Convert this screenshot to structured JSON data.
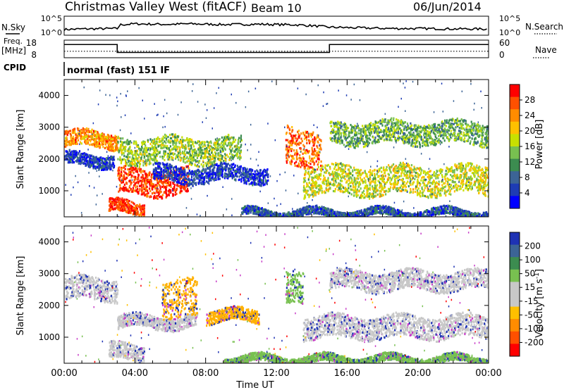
{
  "header": {
    "station": "Christmas Valley West (fitACF)",
    "beam": "Beam 10",
    "date": "06/Jun/2014"
  },
  "chart_data": [
    {
      "type": "line",
      "panel": "sky-noise",
      "left_label": "N.Sky",
      "right_label": "N.Search",
      "left_ticks": [
        "10^5",
        "10^0"
      ],
      "right_ticks": [
        "10^5",
        "10^0"
      ],
      "x": [
        "00:00",
        "01:00",
        "02:00",
        "03:00",
        "03:10",
        "04:00",
        "05:00",
        "06:00",
        "07:00",
        "08:00",
        "09:00",
        "10:00",
        "11:00",
        "12:00",
        "13:00",
        "14:00",
        "15:00",
        "16:00",
        "17:00",
        "18:00",
        "19:00",
        "20:00",
        "21:00",
        "22:00",
        "23:00",
        "24:00"
      ],
      "series": [
        {
          "name": "N.Sky",
          "values": [
            0.3,
            0.33,
            0.34,
            0.35,
            0.55,
            0.6,
            0.58,
            0.57,
            0.6,
            0.58,
            0.56,
            0.57,
            0.58,
            0.56,
            0.55,
            0.5,
            0.42,
            0.4,
            0.38,
            0.36,
            0.35,
            0.35,
            0.34,
            0.33,
            0.33,
            0.32
          ]
        }
      ],
      "ylim": [
        0,
        1
      ]
    },
    {
      "type": "line",
      "panel": "frequency-nave",
      "left_label": "Freq.",
      "left_unit": "[MHz]",
      "right_label": "Nave",
      "left_ticks": [
        "18",
        "8"
      ],
      "right_ticks": [
        "60",
        "0"
      ],
      "x": [
        "00:00",
        "03:00",
        "03:00",
        "15:00",
        "15:00",
        "24:00"
      ],
      "series": [
        {
          "name": "Freq.",
          "values": [
            15.5,
            15.5,
            11.0,
            11.0,
            15.5,
            15.5
          ]
        },
        {
          "name": "Nave",
          "values": [
            22,
            22,
            22,
            22,
            22,
            22
          ]
        }
      ],
      "ylim": [
        8,
        18
      ]
    },
    {
      "type": "heatmap",
      "panel": "power",
      "cpid_label": "CPID",
      "cpid_text": "normal (fast) 151 IF",
      "ylabel": "Slant Range [km]",
      "yticks": [
        "4000",
        "3000",
        "2000",
        "1000"
      ],
      "ylim": [
        180,
        4500
      ],
      "xlim": [
        "00:00",
        "24:00"
      ],
      "colorbar_label": "Power [dB]",
      "colorbar_ticks": [
        "28",
        "24",
        "20",
        "16",
        "12",
        "8",
        "4"
      ],
      "colorbar_colors": [
        "#ff0000",
        "#ff5000",
        "#ff8c00",
        "#ffc000",
        "#c8e000",
        "#78c050",
        "#3c8c50",
        "#3c6496",
        "#1e3cb4",
        "#0000ff"
      ],
      "echo_bands": [
        {
          "t": [
            0.0,
            3.0
          ],
          "range": [
            2400,
            2900
          ],
          "level": 24
        },
        {
          "t": [
            0.0,
            2.8
          ],
          "range": [
            1800,
            2200
          ],
          "level": 6
        },
        {
          "t": [
            3.0,
            7.0
          ],
          "range": [
            900,
            1700
          ],
          "level": 28
        },
        {
          "t": [
            2.5,
            4.5
          ],
          "range": [
            300,
            700
          ],
          "level": 28
        },
        {
          "t": [
            3.0,
            10.0
          ],
          "range": [
            1900,
            2700
          ],
          "level": 16
        },
        {
          "t": [
            5.0,
            11.5
          ],
          "range": [
            1300,
            1800
          ],
          "level": 6
        },
        {
          "t": [
            12.5,
            14.5
          ],
          "range": [
            1800,
            3000
          ],
          "level": 26
        },
        {
          "t": [
            13.5,
            24.0
          ],
          "range": [
            900,
            1800
          ],
          "level": 18
        },
        {
          "t": [
            15.0,
            24.0
          ],
          "range": [
            2500,
            3200
          ],
          "level": 14
        },
        {
          "t": [
            10.0,
            24.0
          ],
          "range": [
            200,
            450
          ],
          "level": 8
        }
      ]
    },
    {
      "type": "heatmap",
      "panel": "velocity",
      "ylabel": "Slant Range [km]",
      "yticks": [
        "4000",
        "3000",
        "2000",
        "1000"
      ],
      "ylim": [
        180,
        4500
      ],
      "xticks": [
        "00:00",
        "04:00",
        "08:00",
        "12:00",
        "16:00",
        "20:00",
        "00:00"
      ],
      "xlabel": "Time UT",
      "colorbar_label": "Velocity [m s",
      "colorbar_label_sup": "-1",
      "colorbar_label_end": "]",
      "colorbar_ticks": [
        "200",
        "100",
        "50",
        "15",
        "-15",
        "-50",
        "-100",
        "-200"
      ],
      "colorbar_colors": [
        "#1e32b4",
        "#3c6496",
        "#3c8c50",
        "#78c050",
        "#c8c8c8",
        "#c8c8c8",
        "#ffc000",
        "#ff8c00",
        "#ff5000",
        "#ff0000"
      ],
      "echo_bands": [
        {
          "t": [
            0.0,
            3.0
          ],
          "range": [
            2200,
            2900
          ],
          "vel": 0
        },
        {
          "t": [
            3.0,
            7.5
          ],
          "range": [
            1300,
            1700
          ],
          "vel": 0
        },
        {
          "t": [
            5.5,
            7.5
          ],
          "range": [
            1600,
            2800
          ],
          "vel": -60
        },
        {
          "t": [
            2.5,
            4.5
          ],
          "range": [
            300,
            800
          ],
          "vel": 0
        },
        {
          "t": [
            8.0,
            11.0
          ],
          "range": [
            1500,
            1900
          ],
          "vel": -60
        },
        {
          "t": [
            12.5,
            13.5
          ],
          "range": [
            2000,
            3000
          ],
          "vel": 60
        },
        {
          "t": [
            15.0,
            24.0
          ],
          "range": [
            2500,
            3100
          ],
          "vel": 0
        },
        {
          "t": [
            13.5,
            24.0
          ],
          "range": [
            1000,
            1700
          ],
          "vel": 0
        },
        {
          "t": [
            9.0,
            24.0
          ],
          "range": [
            200,
            450
          ],
          "vel": 40
        }
      ]
    }
  ]
}
